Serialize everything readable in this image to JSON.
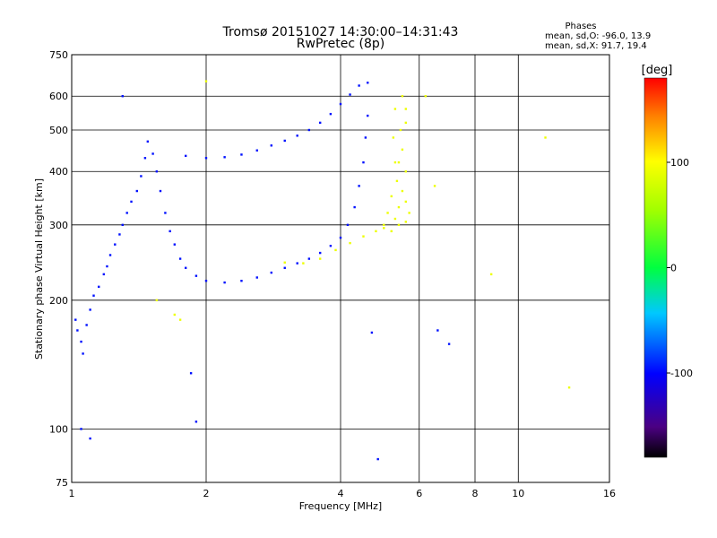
{
  "chart_data": {
    "type": "scatter",
    "title": "Tromsø 20151027 14:30:00–14:31:43",
    "subtitle": "RwPretec (8p)",
    "stats": {
      "heading": "Phases",
      "line1": "mean, sd,O: -96.0, 13.9",
      "line2": "mean, sd,X:  91.7, 19.4"
    },
    "xlabel": "Frequency [MHz]",
    "ylabel": "Stationary phase Virtual Height [km]",
    "x_scale": "log",
    "y_scale": "log",
    "xlim": [
      1,
      16
    ],
    "ylim": [
      75,
      750
    ],
    "x_ticks": [
      {
        "value": 1,
        "label": "1"
      },
      {
        "value": 2,
        "label": "2"
      },
      {
        "value": 4,
        "label": "4"
      },
      {
        "value": 6,
        "label": "6"
      },
      {
        "value": 8,
        "label": "8"
      },
      {
        "value": 10,
        "label": "10"
      },
      {
        "value": 16,
        "label": "16"
      }
    ],
    "y_ticks": [
      {
        "value": 75,
        "label": "75"
      },
      {
        "value": 100,
        "label": "100"
      },
      {
        "value": 200,
        "label": "200"
      },
      {
        "value": 300,
        "label": "300"
      },
      {
        "value": 400,
        "label": "400"
      },
      {
        "value": 500,
        "label": "500"
      },
      {
        "value": 600,
        "label": "600"
      },
      {
        "value": 750,
        "label": "750"
      }
    ],
    "grid": true,
    "colorbar": {
      "label": "[deg]",
      "range": [
        -180,
        180
      ],
      "ticks": [
        {
          "value": 100,
          "label": "100"
        },
        {
          "value": 0,
          "label": "0"
        },
        {
          "value": -100,
          "label": "-100"
        }
      ]
    },
    "series": [
      {
        "phase_deg": -96,
        "points": [
          [
            1.02,
            180
          ],
          [
            1.03,
            170
          ],
          [
            1.05,
            160
          ],
          [
            1.06,
            150
          ],
          [
            1.08,
            175
          ],
          [
            1.1,
            190
          ],
          [
            1.12,
            205
          ],
          [
            1.15,
            215
          ],
          [
            1.18,
            230
          ],
          [
            1.2,
            240
          ],
          [
            1.22,
            255
          ],
          [
            1.25,
            270
          ],
          [
            1.28,
            285
          ],
          [
            1.3,
            300
          ],
          [
            1.33,
            320
          ],
          [
            1.36,
            340
          ],
          [
            1.4,
            360
          ],
          [
            1.43,
            390
          ],
          [
            1.46,
            430
          ],
          [
            1.48,
            470
          ],
          [
            1.52,
            440
          ],
          [
            1.55,
            400
          ],
          [
            1.58,
            360
          ],
          [
            1.62,
            320
          ],
          [
            1.66,
            290
          ],
          [
            1.7,
            270
          ],
          [
            1.75,
            250
          ],
          [
            1.8,
            238
          ],
          [
            1.9,
            228
          ],
          [
            2.0,
            222
          ],
          [
            2.2,
            220
          ],
          [
            2.4,
            222
          ],
          [
            2.6,
            226
          ],
          [
            2.8,
            232
          ],
          [
            3.0,
            238
          ],
          [
            3.2,
            244
          ],
          [
            3.4,
            250
          ],
          [
            3.6,
            258
          ],
          [
            3.8,
            268
          ],
          [
            4.0,
            280
          ],
          [
            4.15,
            300
          ],
          [
            4.3,
            330
          ],
          [
            4.4,
            370
          ],
          [
            4.5,
            420
          ],
          [
            4.55,
            480
          ],
          [
            4.6,
            540
          ],
          [
            1.8,
            435
          ],
          [
            2.0,
            430
          ],
          [
            2.2,
            432
          ],
          [
            2.4,
            438
          ],
          [
            2.6,
            448
          ],
          [
            2.8,
            460
          ],
          [
            3.0,
            472
          ],
          [
            3.2,
            485
          ],
          [
            3.4,
            500
          ],
          [
            3.6,
            520
          ],
          [
            3.8,
            545
          ],
          [
            4.0,
            575
          ],
          [
            4.2,
            605
          ],
          [
            4.4,
            635
          ],
          [
            4.6,
            645
          ],
          [
            1.3,
            600
          ],
          [
            1.05,
            100
          ],
          [
            1.1,
            95
          ],
          [
            1.9,
            104
          ],
          [
            1.85,
            135
          ],
          [
            4.85,
            85
          ],
          [
            4.7,
            168
          ],
          [
            6.6,
            170
          ],
          [
            7.0,
            158
          ]
        ]
      },
      {
        "phase_deg": 92,
        "points": [
          [
            3.0,
            245
          ],
          [
            3.3,
            244
          ],
          [
            3.6,
            250
          ],
          [
            3.9,
            262
          ],
          [
            4.2,
            272
          ],
          [
            4.5,
            282
          ],
          [
            4.8,
            290
          ],
          [
            5.0,
            295
          ],
          [
            5.2,
            290
          ],
          [
            5.4,
            300
          ],
          [
            5.6,
            305
          ],
          [
            5.5,
            600
          ],
          [
            5.6,
            560
          ],
          [
            5.3,
            560
          ],
          [
            5.45,
            500
          ],
          [
            5.5,
            450
          ],
          [
            5.4,
            420
          ],
          [
            5.6,
            400
          ],
          [
            5.35,
            380
          ],
          [
            5.5,
            360
          ],
          [
            5.6,
            340
          ],
          [
            5.4,
            330
          ],
          [
            5.7,
            320
          ],
          [
            5.3,
            310
          ],
          [
            5.0,
            300
          ],
          [
            5.1,
            320
          ],
          [
            5.2,
            350
          ],
          [
            5.3,
            420
          ],
          [
            5.25,
            480
          ],
          [
            5.6,
            520
          ],
          [
            1.55,
            200
          ],
          [
            1.7,
            185
          ],
          [
            1.75,
            180
          ],
          [
            2.0,
            650
          ],
          [
            6.2,
            600
          ],
          [
            6.5,
            370
          ],
          [
            8.7,
            230
          ],
          [
            11.5,
            480
          ],
          [
            13.0,
            125
          ]
        ]
      }
    ]
  }
}
